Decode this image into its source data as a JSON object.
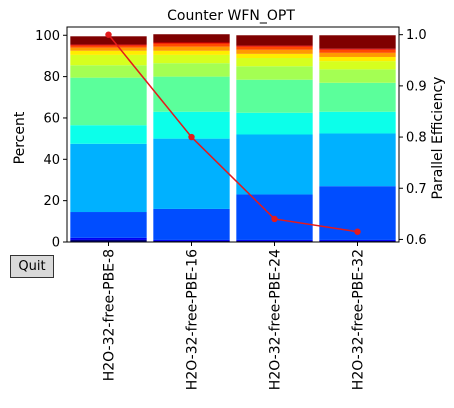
{
  "controls": {
    "quit_label": "Quit"
  },
  "chart_data": {
    "type": "bar",
    "stacked": true,
    "title": "Counter WFN_OPT",
    "ylabel": "Percent",
    "y2label": "Parallel Efficiency",
    "ylim": [
      0,
      104
    ],
    "y2lim": [
      0.595,
      1.015
    ],
    "yticks": [
      0,
      20,
      40,
      60,
      80,
      100
    ],
    "y2ticks": [
      0.6,
      0.7,
      0.8,
      0.9,
      1.0
    ],
    "y2ticklabels": [
      "0.6",
      "0.7",
      "0.8",
      "0.9",
      "1.0"
    ],
    "categories": [
      "H2O-32-free-PBE-8",
      "H2O-32-free-PBE-16",
      "H2O-32-free-PBE-24",
      "H2O-32-free-PBE-32"
    ],
    "stack_colors": [
      "#00007f",
      "#0000f1",
      "#004dff",
      "#00b1ff",
      "#0cffea",
      "#5bff9b",
      "#a4ff53",
      "#d6ff1f",
      "#ffed00",
      "#ff9a00",
      "#ff4a00",
      "#e60000",
      "#7f0000"
    ],
    "series": [
      {
        "values": [
          1,
          0.5,
          0.5,
          0.5
        ]
      },
      {
        "values": [
          1,
          0.5,
          0.5,
          0.5
        ]
      },
      {
        "values": [
          12.5,
          15,
          22,
          26
        ]
      },
      {
        "values": [
          33,
          34,
          29,
          25.5
        ]
      },
      {
        "values": [
          9,
          13,
          10.5,
          10.5
        ]
      },
      {
        "values": [
          23,
          17,
          16,
          14
        ]
      },
      {
        "values": [
          6,
          6.5,
          6.5,
          6.5
        ]
      },
      {
        "values": [
          5,
          4,
          4,
          4
        ]
      },
      {
        "values": [
          2,
          2,
          2,
          2
        ]
      },
      {
        "values": [
          1.5,
          2,
          2,
          2
        ]
      },
      {
        "values": [
          1,
          1.5,
          1.5,
          1.5
        ]
      },
      {
        "values": [
          0.5,
          0.5,
          0.5,
          0.5
        ]
      },
      {
        "values": [
          4,
          4,
          5,
          6.5
        ]
      }
    ],
    "efficiency": [
      1.0,
      0.8,
      0.64,
      0.615
    ],
    "efficiency_color": "#e41a1c",
    "grid": false
  }
}
